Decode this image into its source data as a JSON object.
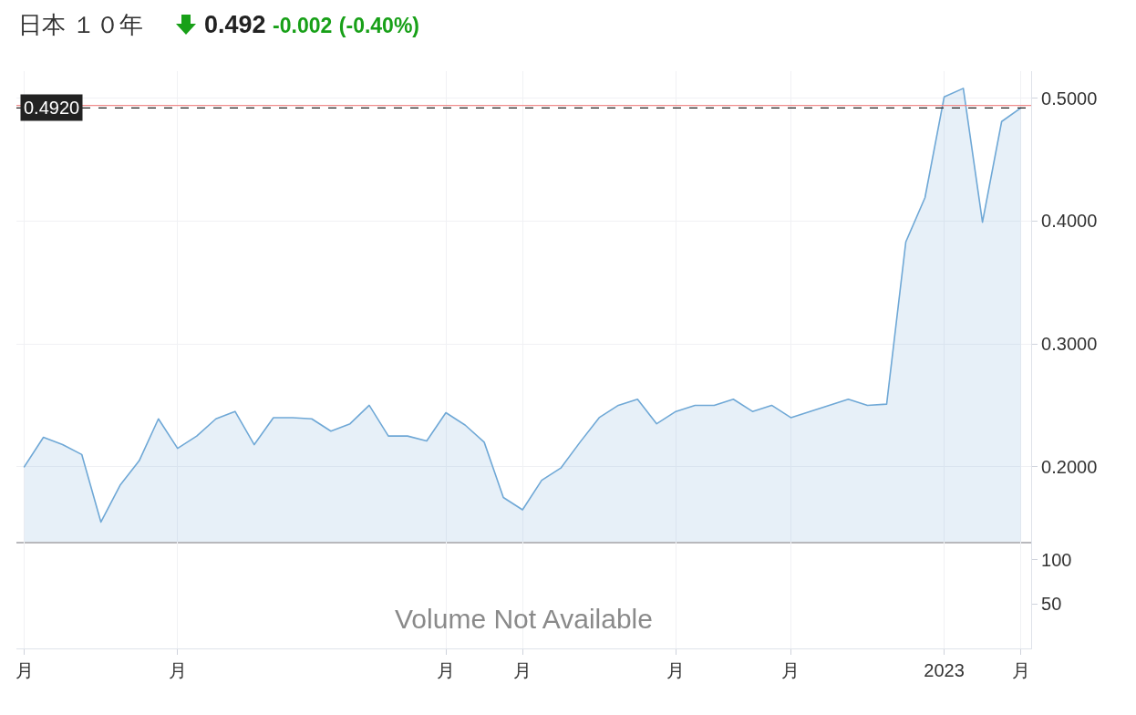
{
  "chart_data": [
    {
      "type": "area",
      "title": "日本 １０年",
      "subtitle": "0.492 -0.002 (-0.40%)",
      "categories": [
        null,
        null,
        null,
        null,
        null,
        null,
        null,
        null,
        null,
        null,
        null,
        null,
        null,
        null,
        null,
        null,
        null,
        null,
        null,
        null,
        null,
        null,
        null,
        null,
        null,
        null,
        null,
        null,
        null,
        null,
        null,
        null,
        null,
        null,
        null,
        null,
        null,
        null,
        null,
        null,
        null,
        null,
        null,
        null,
        null,
        null,
        null,
        null,
        null,
        null,
        null,
        null,
        null
      ],
      "series": [
        {
          "color": "#6fa8d6",
          "values": [
            0.2,
            0.224,
            0.218,
            0.21,
            0.155,
            0.185,
            0.205,
            0.239,
            0.215,
            0.225,
            0.239,
            0.245,
            0.218,
            0.24,
            0.24,
            0.239,
            0.229,
            0.235,
            0.25,
            0.225,
            0.225,
            0.221,
            0.244,
            0.234,
            0.22,
            0.175,
            0.165,
            0.189,
            0.199,
            0.22,
            0.24,
            0.25,
            0.255,
            0.235,
            0.245,
            0.25,
            0.25,
            0.255,
            0.245,
            0.25,
            0.24,
            0.245,
            0.25,
            0.255,
            0.25,
            0.251,
            0.383,
            0.419,
            0.501,
            0.508,
            0.399,
            0.481,
            0.492
          ]
        }
      ],
      "ylim": [
        0.139,
        0.522
      ],
      "yticks": [
        {
          "value": 0.2,
          "label": "0.2000"
        },
        {
          "value": 0.3,
          "label": "0.3000"
        },
        {
          "value": 0.4,
          "label": "0.4000"
        },
        {
          "value": 0.5,
          "label": "0.5000"
        }
      ],
      "ref_lines": [
        {
          "axis": "y",
          "value": 0.494,
          "color": "#f08c8c"
        },
        {
          "axis": "y",
          "value": 0.492,
          "label": "0.4920",
          "color": "#222222",
          "line_style": "dashed"
        }
      ],
      "grid": true,
      "tick_labels": "y"
    },
    {
      "type": "bar",
      "annotations": [
        "Volume Not Available"
      ],
      "categories": [
        "月",
        null,
        null,
        null,
        null,
        null,
        null,
        null,
        "月",
        null,
        null,
        null,
        null,
        null,
        null,
        null,
        null,
        null,
        null,
        null,
        null,
        null,
        "月",
        null,
        null,
        null,
        "月",
        null,
        null,
        null,
        null,
        null,
        null,
        null,
        "月",
        null,
        null,
        null,
        null,
        null,
        "月",
        null,
        null,
        null,
        null,
        null,
        null,
        null,
        "2023",
        null,
        null,
        null,
        "月"
      ],
      "values": [
        null,
        null,
        null,
        null,
        null,
        null,
        null,
        null,
        null,
        null,
        null,
        null,
        null,
        null,
        null,
        null,
        null,
        null,
        null,
        null,
        null,
        null,
        null,
        null,
        null,
        null,
        null,
        null,
        null,
        null,
        null,
        null,
        null,
        null,
        null,
        null,
        null,
        null,
        null,
        null,
        null,
        null,
        null,
        null,
        null,
        null,
        null,
        null,
        null,
        null,
        null,
        null,
        null
      ],
      "ylim": [
        0,
        120
      ],
      "yticks": [
        50,
        100
      ],
      "grid": "x"
    }
  ]
}
